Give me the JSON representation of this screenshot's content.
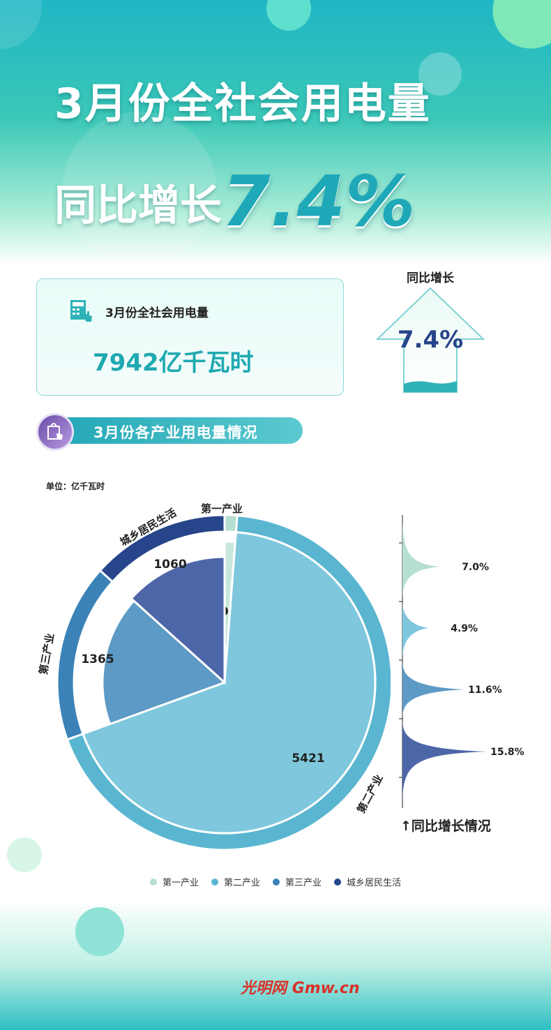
{
  "header": {
    "title_line1": "3月份全社会用电量",
    "title_line2_prefix": "同比增长",
    "title_line2_value": "7.4%"
  },
  "summary_card": {
    "label": "3月份全社会用电量",
    "value": "7942亿千瓦时",
    "icon": "calculator-touch-icon"
  },
  "growth_arrow": {
    "label": "同比增长",
    "value": "7.4%",
    "icon": "up-arrow-icon"
  },
  "section": {
    "title": "3月份各产业用电量情况",
    "icon": "shopping-bag-touch-icon"
  },
  "footer": {
    "logo": "光明网 Gmw.cn"
  },
  "colors": {
    "primary": "#1fa9b8",
    "accent_dark": "#27458a"
  },
  "chart_data": [
    {
      "type": "pie",
      "unit_label": "单位：亿千瓦时",
      "categories": [
        "第一产业",
        "第二产业",
        "第三产业",
        "城乡居民生活"
      ],
      "values": [
        96,
        5421,
        1365,
        1060
      ],
      "colors": [
        "#b5dfcf",
        "#5ab6d0",
        "#3a82b8",
        "#27458a"
      ],
      "inner_colors": [
        "#c8e8dc",
        "#7ec7dc",
        "#5e9ac6",
        "#4c66a8"
      ],
      "legend": [
        "第一产业",
        "第二产业",
        "第三产业",
        "城乡居民生活"
      ],
      "legend_placement": "bottom"
    },
    {
      "type": "bar",
      "title": "↑同比增长情况",
      "categories": [
        "第一产业",
        "第二产业",
        "第三产业",
        "城乡居民生活"
      ],
      "values": [
        7.0,
        4.9,
        11.6,
        15.8
      ],
      "labels": [
        "7.0%",
        "4.9%",
        "11.6%",
        "15.8%"
      ],
      "colors": [
        "#b5dfcf",
        "#7ec7dc",
        "#5e9ac6",
        "#4c66a8"
      ],
      "orientation": "horizontal"
    }
  ]
}
